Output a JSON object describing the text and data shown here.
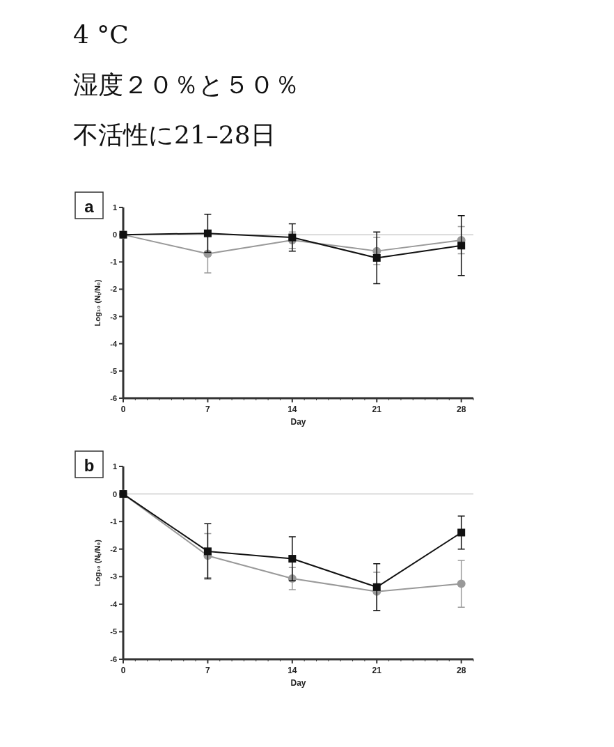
{
  "chart_data": [
    {
      "type": "line",
      "title": "a",
      "annotations": [
        "4 °C",
        "湿度２０％と５０％",
        "不活性に21–28日"
      ],
      "xlabel": "Day",
      "ylabel": "Log₁₀ (Nₜ/N₀)",
      "x": [
        0,
        7,
        14,
        21,
        28
      ],
      "xlim": [
        0,
        29
      ],
      "ylim": [
        -6,
        1
      ],
      "yticks": [
        -6,
        -5,
        -4,
        -3,
        -2,
        -1,
        0,
        1
      ],
      "xticks": [
        0,
        {
          "value": 1,
          "label": null
        },
        {
          "value": 2,
          "label": null
        },
        {
          "value": 3,
          "label": null
        },
        {
          "value": 4,
          "label": null
        },
        {
          "value": 5,
          "label": null
        },
        {
          "value": 6,
          "label": null
        },
        7,
        {
          "value": 8,
          "label": null
        },
        {
          "value": 9,
          "label": null
        },
        {
          "value": 10,
          "label": null
        },
        {
          "value": 11,
          "label": null
        },
        {
          "value": 12,
          "label": null
        },
        {
          "value": 13,
          "label": null
        },
        14,
        {
          "value": 15,
          "label": null
        },
        {
          "value": 16,
          "label": null
        },
        {
          "value": 17,
          "label": null
        },
        {
          "value": 18,
          "label": null
        },
        {
          "value": 19,
          "label": null
        },
        {
          "value": 20,
          "label": null
        },
        21,
        {
          "value": 22,
          "label": null
        },
        {
          "value": 23,
          "label": null
        },
        {
          "value": 24,
          "label": null
        },
        {
          "value": 25,
          "label": null
        },
        {
          "value": 26,
          "label": null
        },
        {
          "value": 27,
          "label": null
        },
        28,
        {
          "value": 29,
          "label": null
        }
      ],
      "ref_lines": [
        {
          "axis": "y",
          "value": 0,
          "color": "#cccccc"
        }
      ],
      "series": [
        {
          "color": "#999999",
          "marker": "circle",
          "values": [
            0,
            -0.7,
            -0.2,
            -0.6,
            -0.2
          ],
          "errors": [
            null,
            0.7,
            0.3,
            0.5,
            0.5
          ]
        },
        {
          "color": "#111111",
          "marker": "square",
          "values": [
            0,
            0.05,
            -0.1,
            -0.85,
            -0.4
          ],
          "errors": [
            null,
            0.7,
            0.5,
            0.95,
            1.1
          ]
        }
      ]
    },
    {
      "type": "line",
      "title": "b",
      "xlabel": "Day",
      "ylabel": "Log₁₀ (Nₜ/N₀)",
      "x": [
        0,
        7,
        14,
        21,
        28
      ],
      "xlim": [
        0,
        29
      ],
      "ylim": [
        -6,
        1
      ],
      "yticks": [
        -6,
        -5,
        -4,
        -3,
        -2,
        -1,
        0,
        1
      ],
      "xticks": [
        0,
        {
          "value": 1,
          "label": null
        },
        {
          "value": 2,
          "label": null
        },
        {
          "value": 3,
          "label": null
        },
        {
          "value": 4,
          "label": null
        },
        {
          "value": 5,
          "label": null
        },
        {
          "value": 6,
          "label": null
        },
        7,
        {
          "value": 8,
          "label": null
        },
        {
          "value": 9,
          "label": null
        },
        {
          "value": 10,
          "label": null
        },
        {
          "value": 11,
          "label": null
        },
        {
          "value": 12,
          "label": null
        },
        {
          "value": 13,
          "label": null
        },
        14,
        {
          "value": 15,
          "label": null
        },
        {
          "value": 16,
          "label": null
        },
        {
          "value": 17,
          "label": null
        },
        {
          "value": 18,
          "label": null
        },
        {
          "value": 19,
          "label": null
        },
        {
          "value": 20,
          "label": null
        },
        21,
        {
          "value": 22,
          "label": null
        },
        {
          "value": 23,
          "label": null
        },
        {
          "value": 24,
          "label": null
        },
        {
          "value": 25,
          "label": null
        },
        {
          "value": 26,
          "label": null
        },
        {
          "value": 27,
          "label": null
        },
        28,
        {
          "value": 29,
          "label": null
        }
      ],
      "ref_lines": [
        {
          "axis": "y",
          "value": 0,
          "color": "#cccccc"
        }
      ],
      "series": [
        {
          "color": "#999999",
          "marker": "circle",
          "values": [
            0,
            -2.24,
            -3.07,
            -3.54,
            -3.26
          ],
          "errors": [
            null,
            0.8,
            0.4,
            0.7,
            0.85
          ]
        },
        {
          "color": "#111111",
          "marker": "square",
          "values": [
            0,
            -2.08,
            -2.35,
            -3.38,
            -1.4
          ],
          "errors": [
            null,
            1.0,
            0.8,
            0.85,
            0.6
          ]
        }
      ]
    }
  ]
}
